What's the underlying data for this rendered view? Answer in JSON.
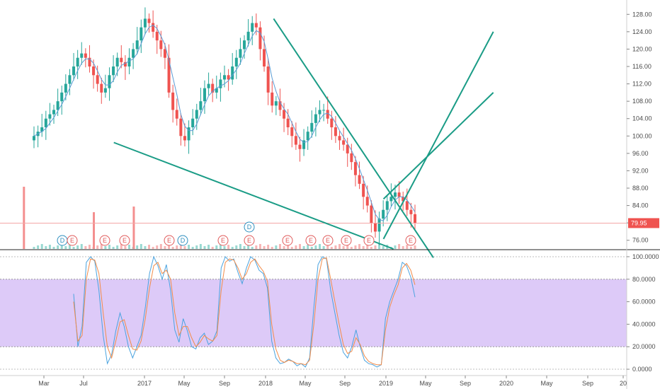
{
  "chart_data": [
    {
      "type": "candlestick",
      "price_axis": {
        "ylim": [
          74,
          130
        ],
        "ticks": [
          "76.00",
          "80.00",
          "84.00",
          "88.00",
          "92.00",
          "96.00",
          "100.00",
          "104.00",
          "108.00",
          "112.00",
          "116.00",
          "120.00",
          "124.00",
          "128.00"
        ]
      },
      "current_price": "79.95",
      "colors": {
        "up": "#26a69a",
        "down": "#ef5350",
        "ma": "#5b9bd5",
        "trend": "#1a9c86",
        "price_line": "#f4a7a7",
        "volume": "#f48f8f"
      },
      "ma_line_shown": true,
      "closes": [
        100,
        101,
        102,
        104,
        105,
        106,
        108,
        110,
        112,
        114,
        116,
        118,
        119,
        118,
        116,
        114,
        112,
        110,
        111,
        114,
        116,
        118,
        117,
        116,
        118,
        120,
        122,
        125,
        127,
        126,
        124,
        122,
        120,
        118,
        110,
        106,
        104,
        100,
        99,
        102,
        104,
        106,
        108,
        111,
        112,
        110,
        111,
        113,
        114,
        113,
        116,
        118,
        120,
        122,
        124,
        126,
        125,
        120,
        116,
        110,
        107,
        108,
        106,
        104,
        102,
        100,
        98,
        97,
        99,
        101,
        103,
        105,
        106,
        106,
        104,
        102,
        100,
        99,
        98,
        96,
        94,
        91,
        89,
        86,
        84,
        80,
        78,
        81,
        83,
        85,
        86,
        87,
        86,
        85,
        83,
        82,
        80
      ],
      "trendlines": [
        {
          "from": [
            "2018-02",
            127
          ],
          "to": [
            "2019-06",
            72
          ]
        },
        {
          "from": [
            "2016-10",
            98.5
          ],
          "to": [
            "2019-02",
            74
          ]
        },
        {
          "from": [
            "2019-01",
            76.3
          ],
          "to": [
            "2019-12",
            124
          ]
        },
        {
          "from": [
            "2019-01",
            85.5
          ],
          "to": [
            "2019-12",
            110
          ]
        }
      ],
      "volume_spikes": [
        "2016-01",
        "2016-08",
        "2016-12"
      ],
      "event_markers": [
        {
          "label": "D",
          "kind": "dividend"
        },
        {
          "label": "E",
          "kind": "earnings"
        },
        {
          "label": "E",
          "kind": "earnings"
        },
        {
          "label": "E",
          "kind": "earnings"
        },
        {
          "label": "E",
          "kind": "earnings"
        },
        {
          "label": "D",
          "kind": "dividend"
        },
        {
          "label": "E",
          "kind": "earnings"
        },
        {
          "label": "E",
          "kind": "earnings"
        },
        {
          "label": "D",
          "kind": "dividend"
        },
        {
          "label": "E",
          "kind": "earnings"
        },
        {
          "label": "E",
          "kind": "earnings"
        },
        {
          "label": "E",
          "kind": "earnings"
        },
        {
          "label": "E",
          "kind": "earnings"
        },
        {
          "label": "E",
          "kind": "earnings"
        },
        {
          "label": "E",
          "kind": "earnings"
        }
      ]
    },
    {
      "type": "line",
      "ylim": [
        -5,
        105
      ],
      "ticks": [
        "0.0000",
        "20.0000",
        "40.0000",
        "60.0000",
        "80.0000",
        "100.0000"
      ],
      "band": [
        20,
        80
      ],
      "colors": {
        "k": "#4aa3df",
        "d": "#f28c4a",
        "band": "#d9c4f7",
        "band_line": "#9a9a9a"
      },
      "series": [
        {
          "values": [
            67,
            20,
            38,
            95,
            100,
            96,
            70,
            30,
            5,
            13,
            34,
            50,
            38,
            20,
            10,
            20,
            30,
            55,
            85,
            100,
            92,
            80,
            93,
            70,
            35,
            24,
            45,
            34,
            20,
            18,
            28,
            32,
            22,
            25,
            34,
            90,
            100,
            96,
            98,
            86,
            76,
            90,
            100,
            97,
            88,
            85,
            72,
            25,
            10,
            5,
            6,
            9,
            7,
            3,
            5,
            2,
            10,
            55,
            93,
            100,
            98,
            70,
            50,
            30,
            15,
            10,
            20,
            35,
            20,
            8,
            5,
            4,
            2,
            4,
            45,
            60,
            70,
            80,
            95,
            92,
            82,
            64
          ]
        },
        {
          "values": [
            60,
            25,
            30,
            80,
            98,
            97,
            85,
            50,
            20,
            10,
            25,
            42,
            44,
            30,
            18,
            17,
            25,
            45,
            72,
            92,
            95,
            85,
            88,
            80,
            50,
            30,
            38,
            38,
            28,
            20,
            24,
            30,
            27,
            25,
            30,
            70,
            95,
            98,
            97,
            90,
            80,
            85,
            95,
            98,
            92,
            87,
            78,
            40,
            18,
            8,
            6,
            8,
            7,
            5,
            5,
            4,
            8,
            40,
            80,
            98,
            99,
            80,
            60,
            40,
            22,
            14,
            16,
            28,
            22,
            12,
            7,
            5,
            4,
            4,
            35,
            55,
            66,
            75,
            90,
            94,
            88,
            75
          ]
        }
      ]
    }
  ],
  "x_axis": {
    "labels": [
      {
        "text": "Mar",
        "date": "2016-03"
      },
      {
        "text": "Jul",
        "date": "2016-07"
      },
      {
        "text": "2017",
        "date": "2017-01"
      },
      {
        "text": "May",
        "date": "2017-05"
      },
      {
        "text": "Sep",
        "date": "2017-09"
      },
      {
        "text": "2018",
        "date": "2018-01"
      },
      {
        "text": "May",
        "date": "2018-05"
      },
      {
        "text": "Sep",
        "date": "2018-09"
      },
      {
        "text": "2019",
        "date": "2019-01"
      },
      {
        "text": "May",
        "date": "2019-05"
      },
      {
        "text": "Sep",
        "date": "2019-09"
      },
      {
        "text": "2020",
        "date": "2020-01"
      },
      {
        "text": "May",
        "date": "2020-05"
      },
      {
        "text": "Sep",
        "date": "2020-09"
      },
      {
        "text": "20",
        "date": "2021-01"
      }
    ]
  }
}
